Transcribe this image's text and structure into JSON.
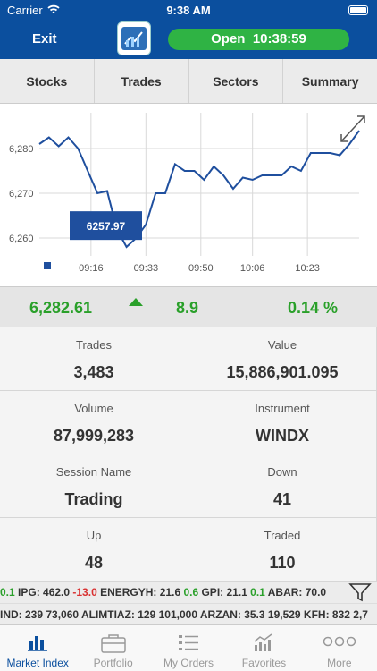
{
  "status_bar": {
    "carrier": "Carrier",
    "time": "9:38 AM"
  },
  "header": {
    "exit_label": "Exit",
    "market_status": "Open",
    "market_time": "10:38:59"
  },
  "tabs": [
    {
      "label": "Stocks"
    },
    {
      "label": "Trades"
    },
    {
      "label": "Sectors"
    },
    {
      "label": "Summary"
    }
  ],
  "chart_data": {
    "type": "line",
    "x": [
      "09:00",
      "09:03",
      "09:06",
      "09:09",
      "09:12",
      "09:15",
      "09:18",
      "09:21",
      "09:24",
      "09:27",
      "09:30",
      "09:33",
      "09:36",
      "09:39",
      "09:42",
      "09:45",
      "09:48",
      "09:51",
      "09:54",
      "09:57",
      "10:00",
      "10:03",
      "10:06",
      "10:09",
      "10:12",
      "10:15",
      "10:18",
      "10:21",
      "10:24",
      "10:27",
      "10:30",
      "10:33",
      "10:36",
      "10:39"
    ],
    "series": [
      {
        "values": [
          6281,
          6282.5,
          6280.5,
          6282.5,
          6280,
          6275,
          6270,
          6270.5,
          6262,
          6258,
          6260,
          6263,
          6270,
          6270,
          6276.5,
          6275,
          6275,
          6273,
          6276,
          6274,
          6271,
          6273.5,
          6273,
          6274,
          6274,
          6274,
          6276,
          6275,
          6279,
          6279,
          6279,
          6278.5,
          6281,
          6284
        ]
      }
    ],
    "x_ticks": [
      "09:16",
      "09:33",
      "09:50",
      "10:06",
      "10:23"
    ],
    "y_ticks": [
      "6,260",
      "6,270",
      "6,280"
    ],
    "ylim": [
      6256,
      6288
    ],
    "tooltip": "6257.97",
    "color": "#1f4f9e"
  },
  "index": {
    "value": "6,282.61",
    "change": "8.9",
    "percent": "0.14 %",
    "color": "#2aa02a"
  },
  "stats": [
    {
      "label": "Trades",
      "value": "3,483"
    },
    {
      "label": "Value",
      "value": "15,886,901.095"
    },
    {
      "label": "Volume",
      "value": "87,999,283"
    },
    {
      "label": "Instrument",
      "value": "WINDX"
    },
    {
      "label": "Session Name",
      "value": "Trading"
    },
    {
      "label": "Down",
      "value": "41"
    },
    {
      "label": "Up",
      "value": "48"
    },
    {
      "label": "Traded",
      "value": "110"
    }
  ],
  "tape1": [
    {
      "text": "0.1",
      "c": "g"
    },
    {
      "text": " IPG: 462.0 ",
      "c": "k"
    },
    {
      "text": "-13.0",
      "c": "r"
    },
    {
      "text": " ENERGYH: 21.6 ",
      "c": "k"
    },
    {
      "text": "0.6",
      "c": "g"
    },
    {
      "text": " GPI: 21.1 ",
      "c": "k"
    },
    {
      "text": "0.1",
      "c": "g"
    },
    {
      "text": " ABAR: 70.0",
      "c": "k"
    }
  ],
  "tape2": "IND: 239  73,060  ALIMTIAZ: 129  101,000  ARZAN: 35.3  19,529  KFH: 832  2,7",
  "tabbar": [
    {
      "label": "Market Index",
      "icon": "bar-chart-icon"
    },
    {
      "label": "Portfolio",
      "icon": "briefcase-icon"
    },
    {
      "label": "My Orders",
      "icon": "list-icon"
    },
    {
      "label": "Favorites",
      "icon": "trend-chart-icon"
    },
    {
      "label": "More",
      "icon": "more-icon"
    }
  ]
}
